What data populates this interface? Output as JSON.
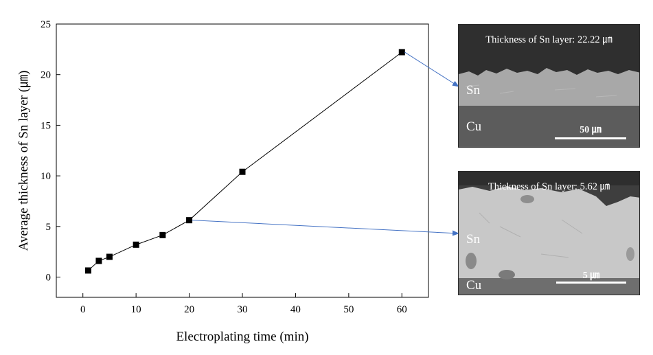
{
  "chart_data": {
    "type": "scatter",
    "title": "",
    "xlabel": "Electroplating time (min)",
    "ylabel": "Average thickness of Sn layer (㎛)",
    "xlim": [
      -5,
      65
    ],
    "ylim": [
      -2,
      25
    ],
    "xticks": [
      0,
      10,
      20,
      30,
      40,
      50,
      60
    ],
    "yticks": [
      0,
      5,
      10,
      15,
      20,
      25
    ],
    "grid": false,
    "legend": "none",
    "series": [
      {
        "x": [
          1,
          3,
          5,
          10,
          15,
          20,
          30,
          60
        ],
        "y": [
          0.65,
          1.6,
          2.0,
          3.2,
          4.15,
          5.62,
          10.4,
          22.22
        ]
      }
    ],
    "colors": {
      "line": "#000000",
      "marker": "#000000",
      "arrow": "#4472c4"
    }
  },
  "annotations": {
    "top": {
      "caption": "Thickness of Sn layer: 22.22 ㎛",
      "sn_label": "Sn",
      "cu_label": "Cu",
      "scale_label": "50 ㎛",
      "points_to_x": 60,
      "points_to_y": 22.22
    },
    "bottom": {
      "caption": "Thickness of Sn layer: 5.62 ㎛",
      "sn_label": "Sn",
      "cu_label": "Cu",
      "scale_label": "5 ㎛",
      "points_to_x": 20,
      "points_to_y": 5.62
    }
  }
}
